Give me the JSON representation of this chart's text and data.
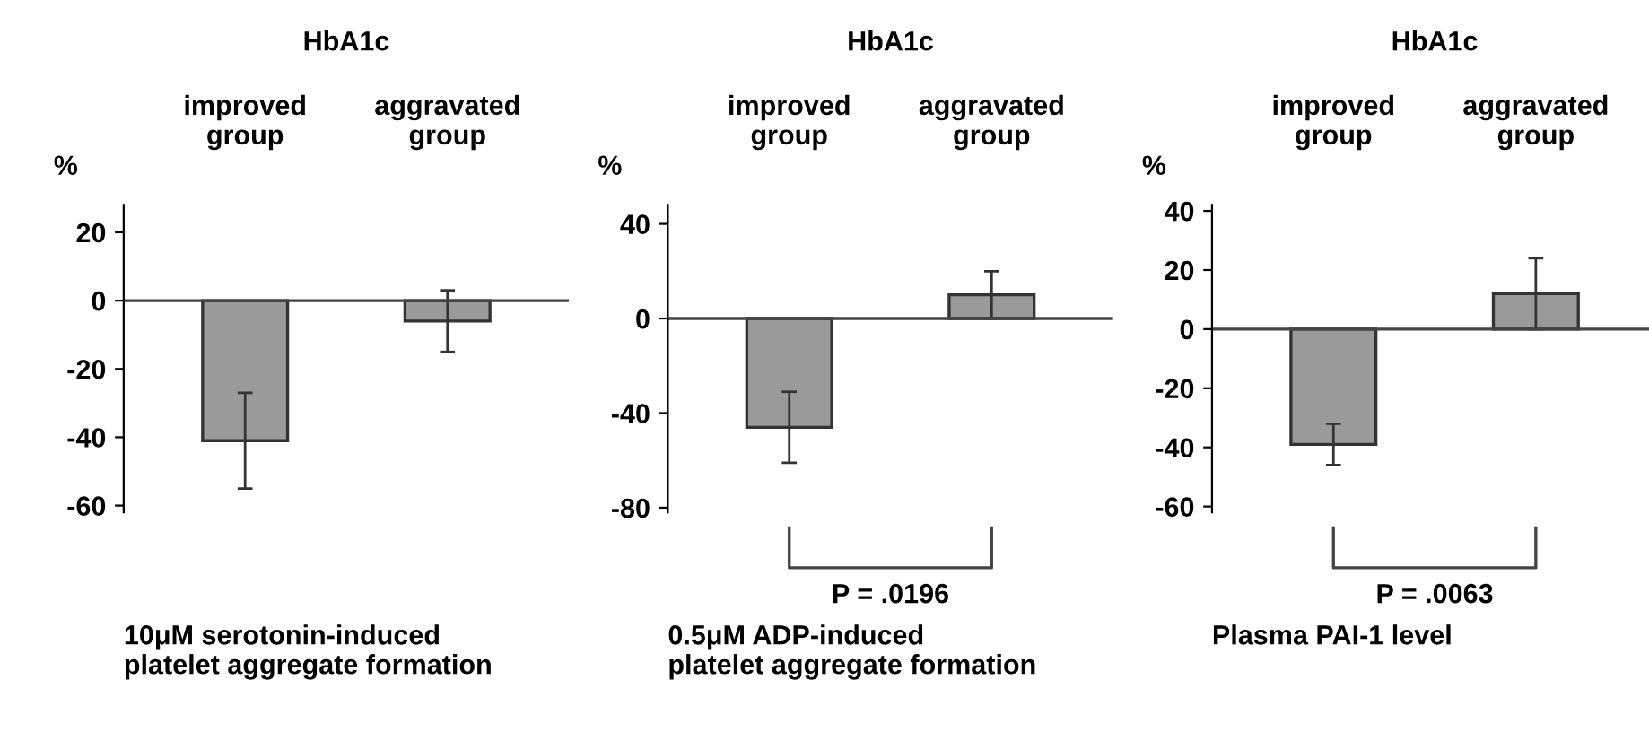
{
  "chart_data": [
    {
      "type": "bar",
      "title": "HbA1c",
      "categories": [
        "improved\ngroup",
        "aggravated\ngroup"
      ],
      "ylabel": "%",
      "xlabel": "10μM serotonin-induced\nplatelet aggregate formation",
      "values": [
        -41,
        -6
      ],
      "errors": [
        14,
        9
      ],
      "color": "#9a9a9a",
      "ylim": [
        -62,
        28
      ],
      "yticks": [
        -60,
        -40,
        -20,
        0,
        20
      ],
      "ref_lines": [
        {
          "axis": "y",
          "value": 0,
          "label": null
        }
      ],
      "grid": false,
      "legend": false
    },
    {
      "type": "bar",
      "title": "HbA1c",
      "categories": [
        "improved\ngroup",
        "aggravated\ngroup"
      ],
      "ylabel": "%",
      "xlabel": "0.5μM ADP-induced\nplatelet aggregate formation",
      "values": [
        -46,
        10
      ],
      "errors": [
        15,
        10
      ],
      "color": "#9a9a9a",
      "ylim": [
        -82,
        48
      ],
      "yticks": [
        -80,
        -40,
        0,
        40
      ],
      "ref_lines": [
        {
          "axis": "y",
          "value": 0,
          "label": null
        }
      ],
      "annotations": [
        "P = .0196"
      ],
      "grid": false,
      "legend": false
    },
    {
      "type": "bar",
      "title": "HbA1c",
      "categories": [
        "improved\ngroup",
        "aggravated\ngroup"
      ],
      "ylabel": "%",
      "xlabel": "Plasma PAI-1 level",
      "values": [
        -39,
        12
      ],
      "errors": [
        7,
        12
      ],
      "color": "#9a9a9a",
      "ylim": [
        -62,
        42
      ],
      "yticks": [
        -60,
        -40,
        -20,
        0,
        20,
        40
      ],
      "ref_lines": [
        {
          "axis": "y",
          "value": 0,
          "label": null
        }
      ],
      "annotations": [
        "P = .0063"
      ],
      "grid": false,
      "legend": false
    }
  ]
}
